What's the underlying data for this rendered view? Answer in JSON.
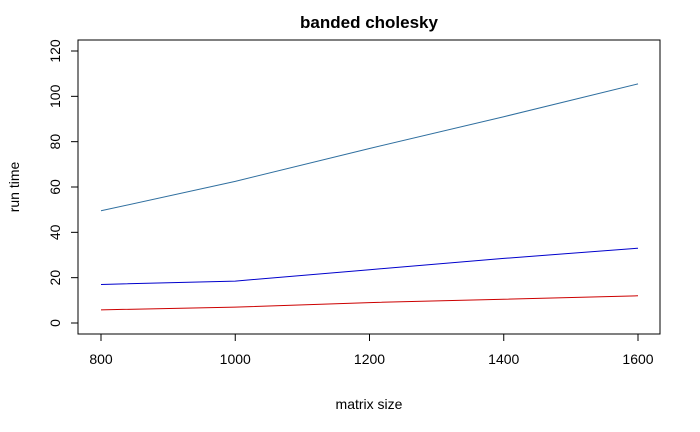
{
  "chart_data": {
    "type": "line",
    "title": "banded cholesky",
    "xlabel": "matrix size",
    "ylabel": "run time",
    "xlim": [
      800,
      1600
    ],
    "ylim": [
      0,
      120
    ],
    "x_ticks": [
      800,
      1000,
      1200,
      1400,
      1600
    ],
    "y_ticks": [
      0,
      20,
      40,
      60,
      80,
      100,
      120
    ],
    "grid": false,
    "legend": "none",
    "x": [
      800,
      1000,
      1200,
      1400,
      1600
    ],
    "series": [
      {
        "color": "#2f6f9f",
        "values": [
          49.5,
          62.5,
          77.0,
          91.0,
          105.5
        ]
      },
      {
        "color": "#0000cc",
        "values": [
          17.0,
          18.5,
          23.5,
          28.5,
          33.0
        ]
      },
      {
        "color": "#cc0000",
        "values": [
          5.8,
          7.0,
          9.0,
          10.5,
          12.0
        ]
      }
    ]
  }
}
